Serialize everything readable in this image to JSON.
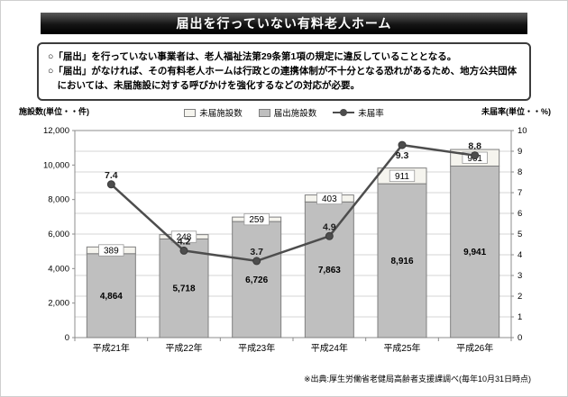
{
  "page": {
    "title": "届出を行っていない有料老人ホーム",
    "notes": [
      "○「届出」を行っていない事業者は、老人福祉法第29条第1項の規定に違反していることとなる。",
      "○「届出」がなければ、その有料老人ホームは行政との連携体制が不十分となる恐れがあるため、地方公共団体においては、未届施設に対する呼びかけを強化するなどの対応が必要。"
    ],
    "footnote": "※出典:厚生労働省老健局高齢者支援課調べ(毎年10月31日時点)"
  },
  "chart_data": {
    "type": "bar",
    "subtype": "stacked-bar-with-line",
    "categories": [
      "平成21年",
      "平成22年",
      "平成23年",
      "平成24年",
      "平成25年",
      "平成26年"
    ],
    "series": [
      {
        "name": "届出施設数",
        "role": "bar-stack-bottom",
        "values": [
          4864,
          5718,
          6726,
          7863,
          8916,
          9941
        ],
        "labels": [
          "4,864",
          "5,718",
          "6,726",
          "7,863",
          "8,916",
          "9,941"
        ],
        "color": "#bfbfbf"
      },
      {
        "name": "未届施設数",
        "role": "bar-stack-top",
        "values": [
          389,
          248,
          259,
          403,
          911,
          961
        ],
        "labels": [
          "389",
          "248",
          "259",
          "403",
          "911",
          "961"
        ],
        "color": "#f5f4ee"
      },
      {
        "name": "未届率",
        "role": "line",
        "values": [
          7.4,
          4.2,
          3.7,
          4.9,
          9.3,
          8.8
        ],
        "labels": [
          "7.4",
          "4.2",
          "3.7",
          "4.9",
          "9.3",
          "8.8"
        ],
        "color": "#4d4d4d"
      }
    ],
    "left_axis": {
      "title": "施設数(単位・・件)",
      "min": 0,
      "max": 12000,
      "step": 2000,
      "tick_labels": [
        "0",
        "2,000",
        "4,000",
        "6,000",
        "8,000",
        "10,000",
        "12,000"
      ]
    },
    "right_axis": {
      "title": "未届率(単位・・%)",
      "min": 0,
      "max": 10,
      "step": 1,
      "tick_labels": [
        "0",
        "1",
        "2",
        "3",
        "4",
        "5",
        "6",
        "7",
        "8",
        "9",
        "10"
      ]
    },
    "legend": [
      "未届施設数",
      "届出施設数",
      "未届率"
    ],
    "grid": "horizontal",
    "legend_position": "top-center"
  }
}
